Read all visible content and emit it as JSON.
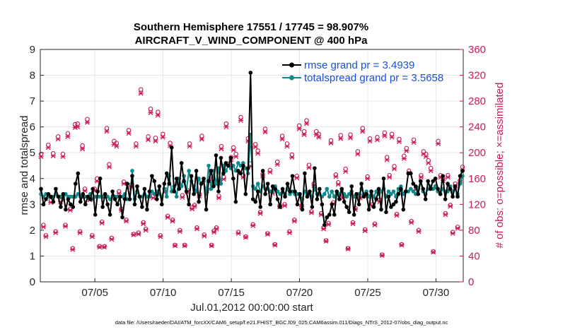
{
  "chart_data": {
    "type": "line",
    "title_line1": "Southern Hemisphere 17551 / 17745 = 98.907%",
    "title_line2": "AIRCRAFT_V_WIND_COMPONENT @ 400 hPa",
    "xlabel": "Jul.01,2012 00:00:00 start",
    "ylabel_left": "rmse and totalspread",
    "ylabel_right": "# of obs: o=possible; ×=assimilated",
    "xlim": [
      1,
      32
    ],
    "ylim_left": [
      0,
      9
    ],
    "ylim_right": [
      0,
      360
    ],
    "x_ticks": [
      {
        "value": 5,
        "label": "07/05"
      },
      {
        "value": 10,
        "label": "07/10"
      },
      {
        "value": 15,
        "label": "07/15"
      },
      {
        "value": 20,
        "label": "07/20"
      },
      {
        "value": 25,
        "label": "07/25"
      },
      {
        "value": 30,
        "label": "07/30"
      }
    ],
    "y_ticks_left": [
      "0",
      "1",
      "2",
      "3",
      "4",
      "5",
      "6",
      "7",
      "8",
      "9"
    ],
    "y_ticks_right": [
      "0",
      "40",
      "80",
      "120",
      "160",
      "200",
      "240",
      "280",
      "320",
      "360"
    ],
    "grid": true,
    "legend_position": "top-right",
    "colors": {
      "rmse": "#000000",
      "spread": "#0f8a8a",
      "obs": "#cc1a55",
      "legend_text": "#1a4fd6",
      "axis_right": "#cc1a55"
    },
    "series": [
      {
        "name": "rmse grand pr = 3.4939",
        "axis": "left",
        "values": [
          3.6,
          3.0,
          3.2,
          3.4,
          3.3,
          3.1,
          3.6,
          3.3,
          2.9,
          3.4,
          2.8,
          3.2,
          3.0,
          2.9,
          3.8,
          4.2,
          3.1,
          3.4,
          3.0,
          3.3,
          3.2,
          3.6,
          2.6,
          3.5,
          4.0,
          2.9,
          3.4,
          3.0,
          2.6,
          3.5,
          3.2,
          3.0,
          3.3,
          2.5,
          3.2,
          3.8,
          3.2,
          4.1,
          3.0,
          3.7,
          3.3,
          2.9,
          3.6,
          2.8,
          3.5,
          4.1,
          3.9,
          3.2,
          3.7,
          3.0,
          3.8,
          4.2,
          3.8,
          5.2,
          3.5,
          4.0,
          3.6,
          4.6,
          3.9,
          3.5,
          3.0,
          4.1,
          3.4,
          4.3,
          3.1,
          3.8,
          4.0,
          2.8,
          3.9,
          4.3,
          3.7,
          4.9,
          3.5,
          4.8,
          4.2,
          4.6,
          4.5,
          4.8,
          4.0,
          3.1,
          4.3,
          4.2,
          4.5,
          3.4,
          4.4,
          8.1,
          3.2,
          3.1,
          3.5,
          2.9,
          4.3,
          3.4,
          3.8,
          3.0,
          3.7,
          3.6,
          3.2,
          2.9,
          3.6,
          3.3,
          3.8,
          3.5,
          4.1,
          3.5,
          3.0,
          3.4,
          2.8,
          4.2,
          3.3,
          3.5,
          2.9,
          4.4,
          3.2,
          3.6,
          3.0,
          2.2,
          2.5,
          2.6,
          3.0,
          2.6,
          3.5,
          3.2,
          3.6,
          3.1,
          2.9,
          2.7,
          3.7,
          2.6,
          3.4,
          3.0,
          3.8,
          3.3,
          3.4,
          2.8,
          3.5,
          2.9,
          3.2,
          3.6,
          2.8,
          4.0,
          2.7,
          3.3,
          2.9,
          3.0,
          3.1,
          3.4,
          3.6,
          2.8,
          3.5,
          4.2,
          4.2,
          3.8,
          3.7,
          3.4,
          3.9,
          3.6,
          3.2,
          3.9,
          3.6,
          3.9,
          4.0,
          3.6,
          3.4,
          4.1,
          3.2,
          3.8,
          3.6,
          3.3,
          3.7,
          3.3,
          4.1,
          4.3
        ]
      },
      {
        "name": "totalspread grand pr = 3.5658",
        "axis": "left",
        "values": [
          3.4,
          3.3,
          3.4,
          3.3,
          3.3,
          3.3,
          3.4,
          3.3,
          3.3,
          3.2,
          3.4,
          3.3,
          3.3,
          3.3,
          3.3,
          3.4,
          3.3,
          3.3,
          3.3,
          3.3,
          3.4,
          3.2,
          3.3,
          3.3,
          3.3,
          3.3,
          3.3,
          3.3,
          3.2,
          3.3,
          3.3,
          3.3,
          3.3,
          3.3,
          3.4,
          3.2,
          3.2,
          4.3,
          3.2,
          3.5,
          3.3,
          3.3,
          3.4,
          3.3,
          3.3,
          3.5,
          3.4,
          3.5,
          3.4,
          3.3,
          3.6,
          3.3,
          4.1,
          3.5,
          3.7,
          3.3,
          4.0,
          3.7,
          4.1,
          3.5,
          4.3,
          3.9,
          3.7,
          3.5,
          4.0,
          3.8,
          3.9,
          3.4,
          4.5,
          3.6,
          4.3,
          3.8,
          4.4,
          3.8,
          4.5,
          4.3,
          4.5,
          4.4,
          4.5,
          4.3,
          4.6,
          4.5,
          4.6,
          4.4,
          4.2,
          5.7,
          3.7,
          3.6,
          3.8,
          3.5,
          3.7,
          3.6,
          3.6,
          3.5,
          3.5,
          3.7,
          3.5,
          3.4,
          3.5,
          3.4,
          3.6,
          3.4,
          3.5,
          3.4,
          3.4,
          3.4,
          3.2,
          3.5,
          3.4,
          3.4,
          3.3,
          3.6,
          3.4,
          3.4,
          3.3,
          3.4,
          3.6,
          3.3,
          3.5,
          3.3,
          3.5,
          3.4,
          3.5,
          3.4,
          3.3,
          3.4,
          3.5,
          3.3,
          3.4,
          3.4,
          3.6,
          3.4,
          3.5,
          3.3,
          3.5,
          3.3,
          3.5,
          3.4,
          3.5,
          3.6,
          3.3,
          3.5,
          3.4,
          3.5,
          3.3,
          3.6,
          3.7,
          3.4,
          3.5,
          3.5,
          3.6,
          3.5,
          3.4,
          3.6,
          3.9,
          3.5,
          3.4,
          3.6,
          3.7,
          3.6,
          3.7,
          3.5,
          3.4,
          3.6,
          3.5,
          3.5,
          3.7,
          3.5,
          3.6,
          3.4,
          3.8,
          4.1
        ]
      },
      {
        "name": "obs possible",
        "axis": "right",
        "values": [
          198,
          88,
          72,
          212,
          126,
          199,
          78,
          225,
          126,
          198,
          88,
          230,
          113,
          52,
          244,
          245,
          78,
          211,
          144,
          252,
          130,
          72,
          144,
          160,
          55,
          93,
          55,
          238,
          182,
          68,
          218,
          215,
          140,
          113,
          155,
          96,
          235,
          150,
          74,
          214,
          76,
          298,
          92,
          82,
          225,
          268,
          133,
          223,
          263,
          72,
          229,
          143,
          102,
          215,
          96,
          57,
          154,
          80,
          134,
          57,
          142,
          214,
          115,
          119,
          84,
          136,
          226,
          73,
          144,
          160,
          57,
          79,
          84,
          133,
          210,
          162,
          245,
          183,
          193,
          208,
          198,
          77,
          255,
          165,
          70,
          222,
          183,
          89,
          213,
          203,
          108,
          167,
          237,
          75,
          173,
          140,
          58,
          186,
          118,
          226,
          120,
          214,
          78,
          197,
          96,
          164,
          242,
          118,
          233,
          250,
          181,
          109,
          152,
          233,
          229,
          106,
          84,
          64,
          91,
          219,
          123,
          166,
          154,
          227,
          133,
          175,
          52,
          228,
          92,
          114,
          202,
          133,
          238,
          81,
          163,
          222,
          120,
          90,
          224,
          127,
          42,
          231,
          193,
          165,
          229,
          179,
          105,
          221,
          58,
          195,
          207,
          172,
          94,
          220,
          146,
          80,
          165,
          202,
          198,
          188,
          176,
          47,
          148,
          218,
          165,
          160,
          106,
          165,
          119,
          77,
          152,
          85,
          157,
          178
        ]
      },
      {
        "name": "obs assimilated",
        "axis": "right",
        "values": [
          194,
          85,
          70,
          208,
          123,
          195,
          76,
          221,
          124,
          194,
          86,
          225,
          111,
          50,
          239,
          240,
          76,
          206,
          141,
          247,
          127,
          70,
          141,
          156,
          54,
          91,
          54,
          233,
          178,
          66,
          213,
          210,
          137,
          111,
          152,
          94,
          230,
          147,
          73,
          210,
          74,
          292,
          90,
          80,
          220,
          262,
          130,
          218,
          258,
          70,
          224,
          140,
          100,
          211,
          94,
          56,
          151,
          78,
          131,
          56,
          139,
          210,
          113,
          117,
          82,
          133,
          221,
          71,
          141,
          157,
          56,
          77,
          82,
          130,
          206,
          159,
          240,
          179,
          189,
          204,
          194,
          75,
          250,
          162,
          69,
          218,
          179,
          87,
          209,
          199,
          106,
          164,
          232,
          74,
          170,
          137,
          57,
          182,
          116,
          221,
          118,
          210,
          76,
          193,
          94,
          161,
          237,
          116,
          228,
          245,
          177,
          107,
          149,
          228,
          224,
          104,
          82,
          63,
          89,
          215,
          121,
          163,
          151,
          222,
          130,
          171,
          51,
          223,
          90,
          112,
          198,
          130,
          233,
          79,
          160,
          218,
          118,
          88,
          220,
          124,
          41,
          226,
          189,
          162,
          224,
          175,
          103,
          217,
          57,
          191,
          203,
          169,
          92,
          216,
          143,
          78,
          162,
          198,
          194,
          184,
          172,
          46,
          145,
          214,
          162,
          157,
          104,
          162,
          117,
          75,
          149,
          83,
          154,
          174
        ]
      }
    ]
  },
  "footer": "data file: /Users/raeder/DAI/ATM_forcXX/CAM6_setup/f.e21.FHIST_BGC.f09_025.CAM6assim.011/Diags_NTrS_2012-07/obs_diag_output.nc"
}
